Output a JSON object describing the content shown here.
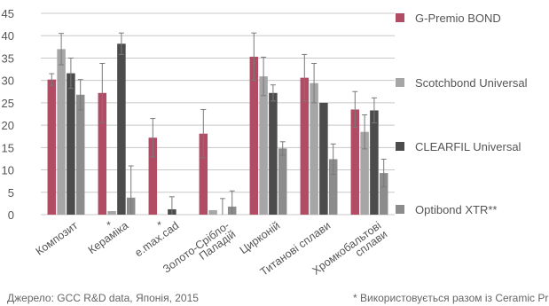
{
  "chart_data": {
    "type": "bar",
    "title": "",
    "xlabel": "",
    "ylabel": "",
    "ylim": [
      0,
      45
    ],
    "yticks": [
      0,
      5,
      10,
      15,
      20,
      25,
      30,
      35,
      40,
      45
    ],
    "grid": true,
    "legend_position": "right",
    "categories": [
      "Композит",
      "Кераміка",
      "e.max.cad",
      "Золото-Срібло-\nПаладій",
      "Цирконій",
      "Титанові сплави",
      "Хромкобальтові\nсплави"
    ],
    "category_markers": [
      "",
      "*",
      "*",
      "",
      "",
      "",
      ""
    ],
    "series": [
      {
        "name": "G-Premio BOND",
        "color": "#b24b64",
        "values": [
          30.2,
          27.2,
          17.2,
          18.1,
          35.3,
          30.6,
          23.5
        ],
        "errors": [
          1.3,
          6.6,
          4.3,
          5.4,
          5.3,
          5.2,
          4.0
        ]
      },
      {
        "name": "Scotchbond Universal",
        "color": "#a6a6a6",
        "values": [
          37.0,
          0.8,
          0,
          1.0,
          30.9,
          29.4,
          18.5
        ],
        "errors": [
          3.5,
          0,
          0,
          0,
          4.3,
          4.4,
          3.8
        ]
      },
      {
        "name": "CLEARFIL Universal",
        "color": "#4c4c4c",
        "values": [
          31.6,
          38.2,
          1.2,
          0,
          27.2,
          25.0,
          23.3
        ],
        "errors": [
          3.4,
          2.4,
          2.8,
          3.6,
          1.8,
          0,
          2.8
        ]
      },
      {
        "name": "Optibond XTR**",
        "color": "#8c8c8c",
        "values": [
          26.8,
          3.8,
          0,
          1.8,
          14.8,
          12.4,
          9.3
        ],
        "errors": [
          3.4,
          7.1,
          0,
          3.5,
          1.5,
          3.4,
          3.1
        ]
      }
    ]
  },
  "legend": {
    "items": [
      "G-Premio BOND",
      "Scotchbond Universal",
      "CLEARFIL Universal",
      "Optibond XTR**"
    ]
  },
  "footer": {
    "source": "Джерело: GCC R&D data, Японія, 2015",
    "note": "* Використовується разом із Ceramic Primer"
  }
}
